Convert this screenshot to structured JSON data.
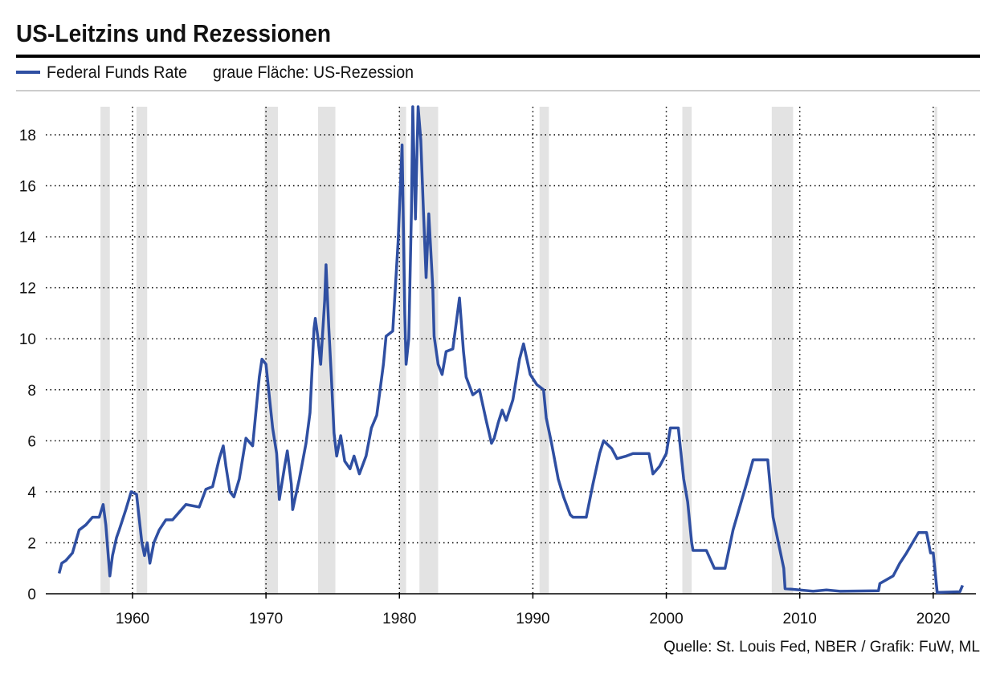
{
  "chart_data": {
    "type": "line",
    "title": "US-Leitzins und Rezessionen",
    "recession_label": "graue Fläche: US-Rezession",
    "source": "Quelle: St. Louis Fed, NBER / Grafik: FuW, ML",
    "xlim": [
      1953.5,
      2023.2
    ],
    "xticks": [
      1960,
      1970,
      1980,
      1990,
      2000,
      2010,
      2020
    ],
    "ylim": [
      0,
      19.1
    ],
    "yticks": [
      0,
      2,
      4,
      6,
      8,
      10,
      12,
      14,
      16,
      18
    ],
    "grid": true,
    "recession_color": "#e3e3e3",
    "recessions": [
      [
        1957.6,
        1958.3
      ],
      [
        1960.3,
        1961.1
      ],
      [
        1969.9,
        1970.9
      ],
      [
        1973.9,
        1975.2
      ],
      [
        1980.0,
        1980.5
      ],
      [
        1981.5,
        1982.9
      ],
      [
        1990.5,
        1991.2
      ],
      [
        2001.2,
        2001.9
      ],
      [
        2007.9,
        2009.5
      ],
      [
        2020.1,
        2020.3
      ]
    ],
    "x": [
      1954.5,
      1954.7,
      1955,
      1955.5,
      1956,
      1956.5,
      1957,
      1957.5,
      1957.8,
      1958,
      1958.3,
      1958.5,
      1958.8,
      1959,
      1959.5,
      1959.9,
      1960.3,
      1960.7,
      1960.9,
      1961.1,
      1961.3,
      1961.6,
      1962,
      1962.5,
      1963,
      1963.5,
      1964,
      1965,
      1965.5,
      1966,
      1966.5,
      1966.8,
      1967,
      1967.3,
      1967.6,
      1968,
      1968.5,
      1969,
      1969.5,
      1969.7,
      1970,
      1970.2,
      1970.5,
      1970.8,
      1971,
      1971.4,
      1971.6,
      1971.9,
      1972,
      1972.5,
      1973,
      1973.3,
      1973.6,
      1973.7,
      1973.9,
      1974.1,
      1974.4,
      1974.5,
      1974.7,
      1974.9,
      1975.1,
      1975.3,
      1975.6,
      1975.9,
      1976.3,
      1976.6,
      1977,
      1977.5,
      1977.9,
      1978.3,
      1978.8,
      1979,
      1979.5,
      1979.9,
      1980.2,
      1980.4,
      1980.5,
      1980.7,
      1980.9,
      1981.0,
      1981.2,
      1981.4,
      1981.6,
      1981.8,
      1982.0,
      1982.2,
      1982.5,
      1982.6,
      1982.9,
      1983.2,
      1983.5,
      1984,
      1984.5,
      1984.8,
      1985,
      1985.5,
      1986,
      1986.5,
      1986.9,
      1987.1,
      1987.4,
      1987.7,
      1988,
      1988.5,
      1989,
      1989.3,
      1989.8,
      1990.3,
      1990.8,
      1991,
      1991.4,
      1991.9,
      1992.3,
      1992.8,
      1993,
      1994,
      1994.5,
      1995,
      1995.3,
      1995.9,
      1996.3,
      1997,
      1997.5,
      1998,
      1998.7,
      1999,
      1999.5,
      2000,
      2000.3,
      2000.9,
      2001.3,
      2001.6,
      2001.9,
      2002,
      2003,
      2003.6,
      2004.4,
      2005,
      2006,
      2006.5,
      2007.6,
      2008,
      2008.4,
      2008.8,
      2008.9,
      2010,
      2011,
      2012,
      2013,
      2015.9,
      2016,
      2017,
      2017.5,
      2018,
      2018.9,
      2019.5,
      2019.8,
      2020,
      2020.3,
      2022,
      2022.2
    ],
    "series": [
      {
        "name": "Federal Funds Rate",
        "color": "#2f4fa2",
        "values": [
          0.8,
          1.2,
          1.3,
          1.6,
          2.5,
          2.7,
          3.0,
          3.0,
          3.5,
          2.7,
          0.7,
          1.5,
          2.2,
          2.5,
          3.3,
          4.0,
          3.9,
          2.0,
          1.5,
          2.0,
          1.2,
          2.0,
          2.5,
          2.9,
          2.9,
          3.2,
          3.5,
          3.4,
          4.1,
          4.2,
          5.3,
          5.8,
          5.0,
          4.0,
          3.8,
          4.5,
          6.1,
          5.8,
          8.5,
          9.2,
          9.0,
          8.0,
          6.5,
          5.5,
          3.7,
          5.0,
          5.6,
          4.3,
          3.3,
          4.5,
          5.9,
          7.1,
          10.4,
          10.8,
          10.0,
          9.0,
          11.5,
          12.9,
          10.5,
          8.5,
          6.3,
          5.4,
          6.2,
          5.2,
          4.9,
          5.4,
          4.7,
          5.4,
          6.5,
          7.0,
          9.0,
          10.1,
          10.3,
          13.8,
          17.6,
          11.0,
          9.0,
          10.0,
          15.0,
          19.1,
          14.7,
          19.1,
          17.8,
          15.0,
          12.4,
          14.9,
          12.0,
          10.1,
          9.0,
          8.6,
          9.5,
          9.6,
          11.6,
          9.5,
          8.5,
          7.8,
          8.0,
          6.8,
          5.9,
          6.1,
          6.7,
          7.2,
          6.8,
          7.6,
          9.2,
          9.8,
          8.6,
          8.2,
          8.0,
          6.9,
          5.9,
          4.5,
          3.8,
          3.1,
          3.0,
          3.0,
          4.3,
          5.5,
          6.0,
          5.7,
          5.3,
          5.4,
          5.5,
          5.5,
          5.5,
          4.7,
          5.0,
          5.5,
          6.5,
          6.5,
          4.5,
          3.6,
          2.0,
          1.7,
          1.7,
          1.0,
          1.0,
          2.5,
          4.3,
          5.25,
          5.25,
          3.0,
          2.0,
          1.0,
          0.2,
          0.15,
          0.1,
          0.15,
          0.1,
          0.12,
          0.4,
          0.7,
          1.2,
          1.6,
          2.4,
          2.4,
          1.6,
          1.6,
          0.05,
          0.08,
          0.33
        ]
      }
    ]
  }
}
